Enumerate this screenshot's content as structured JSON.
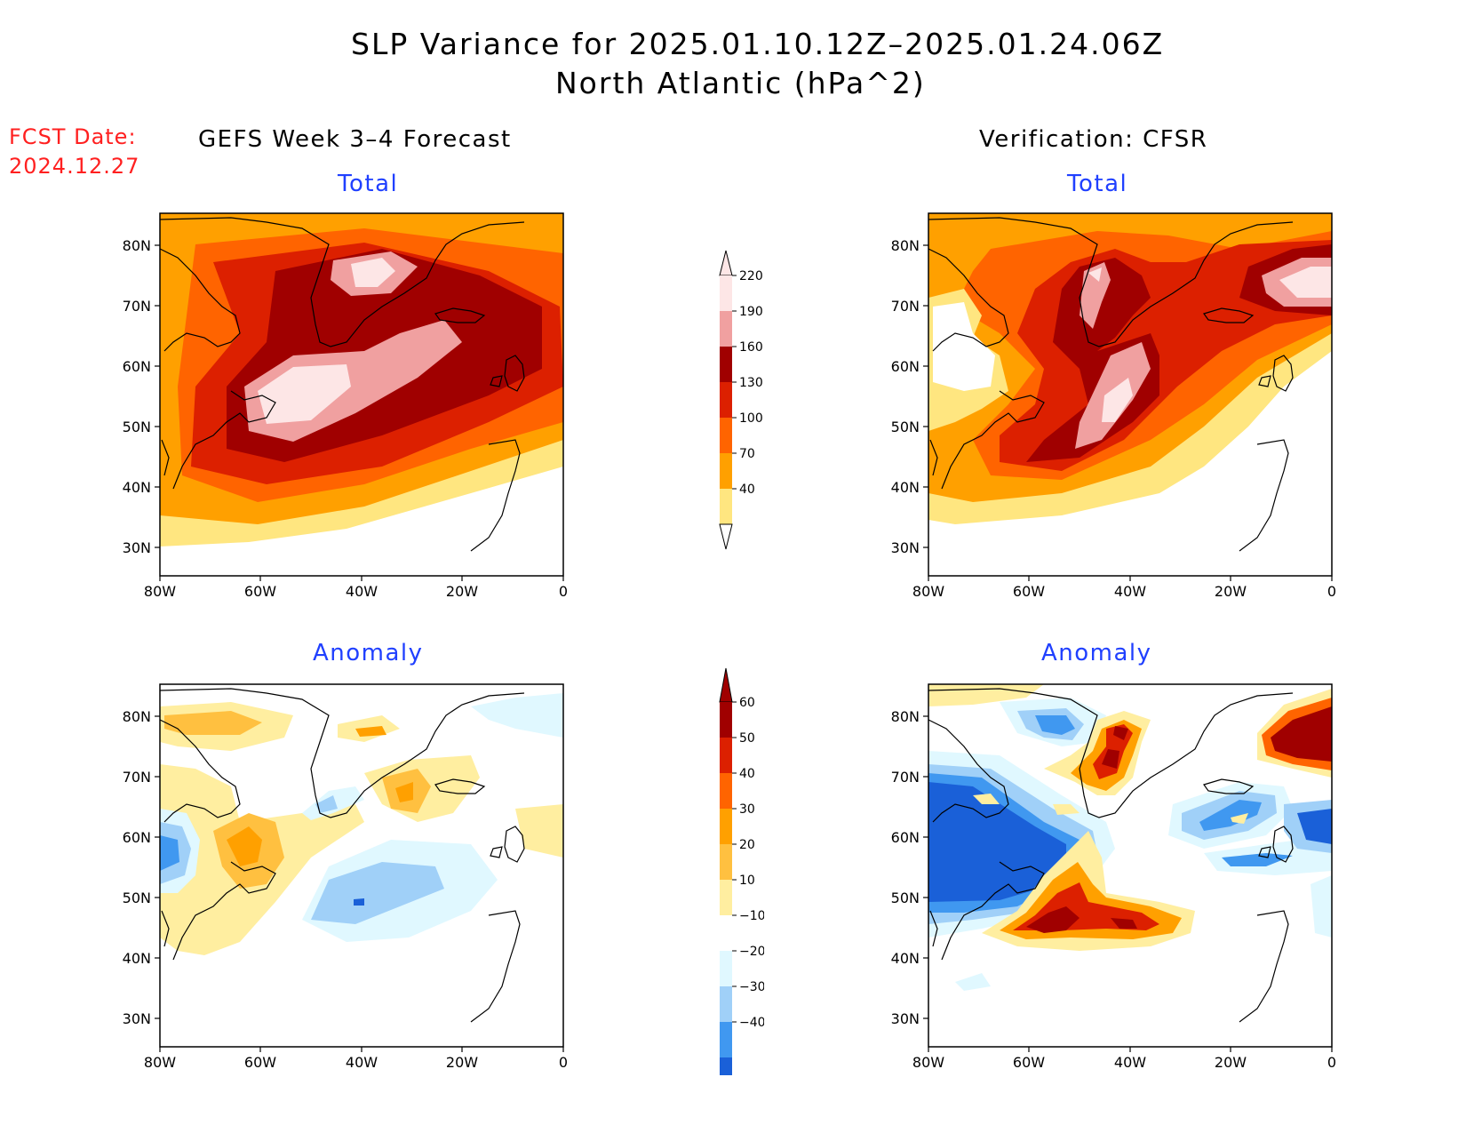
{
  "header": {
    "title": "SLP Variance for 2025.01.10.12Z–2025.01.24.06Z",
    "subtitle": "North Atlantic (hPa^2)"
  },
  "fcst": {
    "label": "FCST Date:",
    "date": "2024.12.27"
  },
  "columns": {
    "left": "GEFS Week 3–4 Forecast",
    "right": "Verification: CFSR"
  },
  "panels": {
    "total_left": "Total",
    "total_right": "Total",
    "anom_left": "Anomaly",
    "anom_right": "Anomaly"
  },
  "axes": {
    "lon_ticks": [
      "80W",
      "60W",
      "40W",
      "20W",
      "0"
    ],
    "lat_ticks": [
      "80N",
      "70N",
      "60N",
      "50N",
      "40N",
      "30N"
    ]
  },
  "legend_total": {
    "levels": [
      "220",
      "190",
      "160",
      "130",
      "100",
      "70",
      "40"
    ],
    "colors": [
      "#fde6e6",
      "#f0a0a0",
      "#a00000",
      "#dc2000",
      "#ff6400",
      "#ffa000",
      "#ffe680"
    ]
  },
  "legend_anomaly": {
    "levels": [
      "60",
      "50",
      "40",
      "30",
      "20",
      "10",
      "−10",
      "−20",
      "−30",
      "−40"
    ],
    "colors": [
      "#a00000",
      "#dc2000",
      "#ff6400",
      "#ffa000",
      "#ffc040",
      "#ffeea0",
      "#ffffff",
      "#e0f8ff",
      "#a0d0f8",
      "#4098f0",
      "#1a60d8"
    ]
  }
}
